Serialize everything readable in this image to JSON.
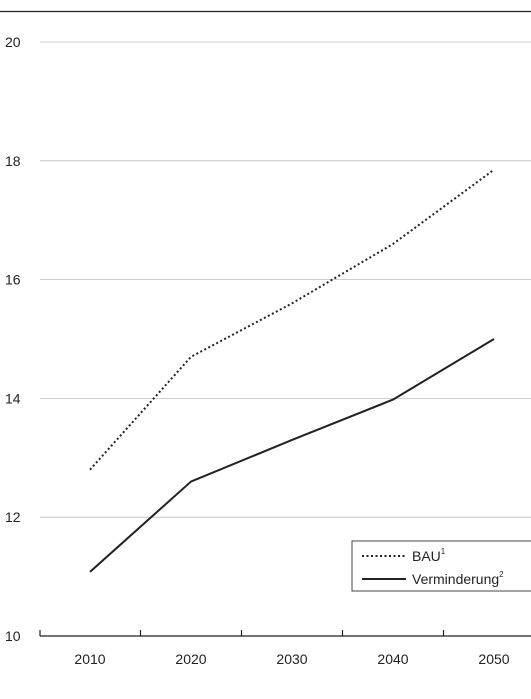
{
  "chart_data": {
    "type": "line",
    "title": "",
    "xlabel": "",
    "ylabel": "",
    "x": [
      2010,
      2020,
      2030,
      2040,
      2050
    ],
    "x_tick_labels": [
      "2010",
      "2020",
      "2030",
      "2040",
      "2050"
    ],
    "y_tick_labels": [
      "10",
      "12",
      "14",
      "16",
      "18",
      "20"
    ],
    "ylim": [
      10,
      20
    ],
    "grid": "horizontal",
    "legend_position": "bottom-right",
    "series": [
      {
        "name": "BAU",
        "name_superscript": "1",
        "style": "dotted",
        "color": "#222222",
        "values": [
          12.8,
          14.7,
          15.6,
          16.6,
          17.85
        ]
      },
      {
        "name": "Verminderung",
        "name_superscript": "2",
        "style": "solid",
        "color": "#222222",
        "values": [
          11.08,
          12.6,
          13.3,
          13.98,
          15.0
        ]
      }
    ]
  }
}
